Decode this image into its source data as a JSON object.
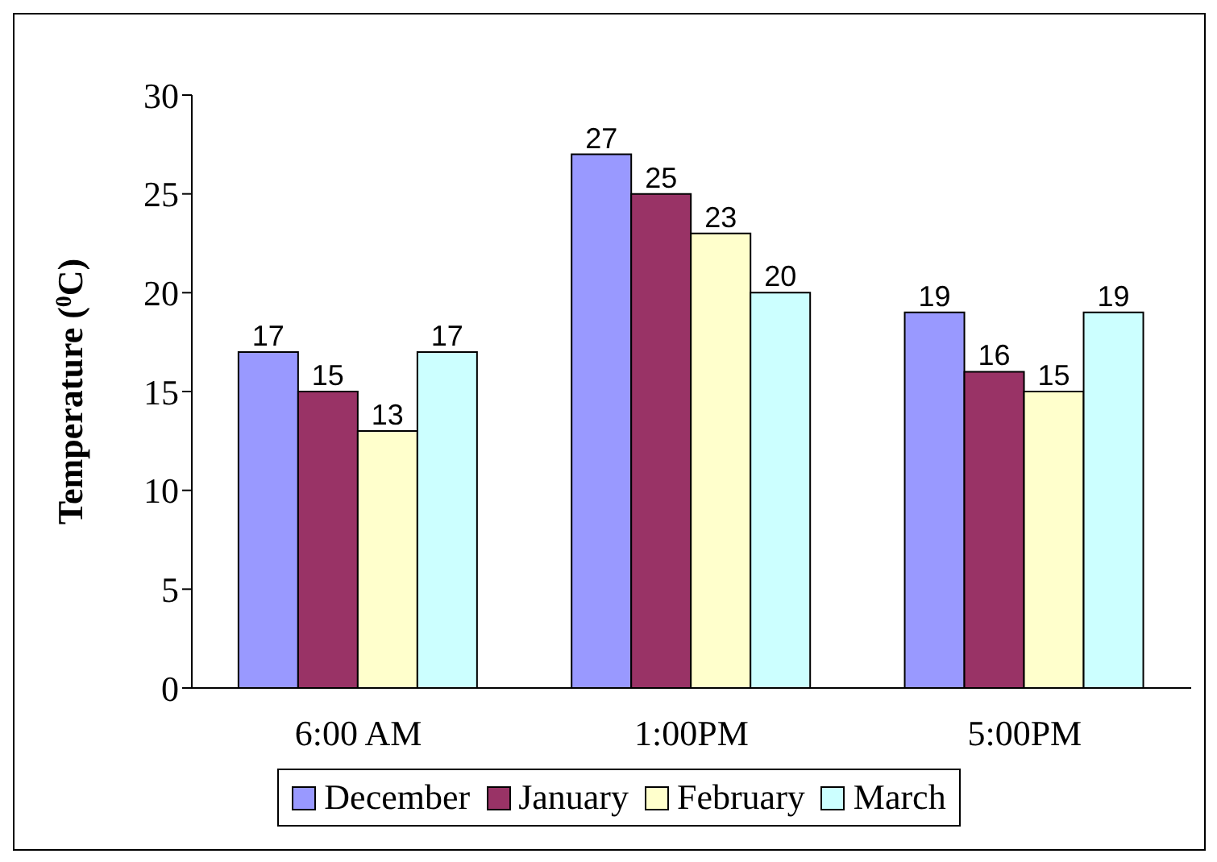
{
  "chart_data": {
    "type": "bar",
    "ylabel": "Temperature ($^{0}$C)",
    "categories": [
      "6:00 AM",
      "1:00PM",
      "5:00PM"
    ],
    "series": [
      {
        "name": "December",
        "color": "#9999ff",
        "values": [
          17,
          27,
          19
        ]
      },
      {
        "name": "January",
        "color": "#993366",
        "values": [
          15,
          25,
          16
        ]
      },
      {
        "name": "February",
        "color": "#ffffcc",
        "values": [
          13,
          23,
          15
        ]
      },
      {
        "name": "March",
        "color": "#ccffff",
        "values": [
          17,
          20,
          19
        ]
      }
    ],
    "ylim": [
      0,
      30
    ],
    "yticks": [
      0,
      5,
      10,
      15,
      20,
      25,
      30
    ],
    "data_labels": true,
    "legend": "bottom",
    "grid": false
  }
}
